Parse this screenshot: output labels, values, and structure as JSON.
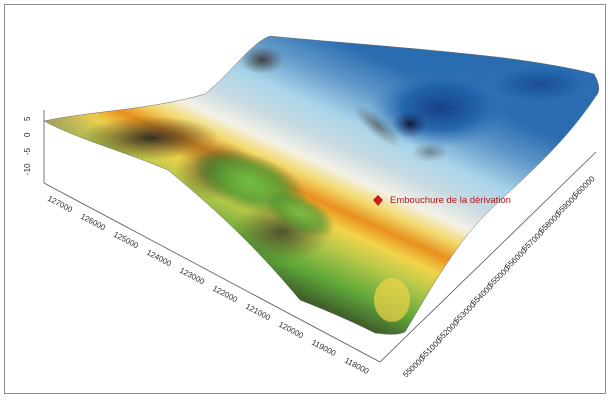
{
  "figure": {
    "annotation": {
      "label": "Embouchure de la dérivation",
      "marker_color": "#c81e1e"
    },
    "left_axis_ticks": [
      "127000",
      "126000",
      "125000",
      "124000",
      "123000",
      "122000",
      "121000",
      "120000",
      "119000",
      "118000"
    ],
    "right_axis_ticks": [
      "550000",
      "551000",
      "552000",
      "553000",
      "554000",
      "555000",
      "556000",
      "557000",
      "558000",
      "559000",
      "560000"
    ],
    "vertical_axis_ticks": [
      "5",
      "0",
      "-5",
      "-10"
    ],
    "surface_colors": {
      "green_low": "#5fa83a",
      "yellow": "#f2d34a",
      "orange": "#e8901e",
      "white_crest": "#f4f1e6",
      "light_blue": "#a9d4ea",
      "deep_blue": "#1d5fa8",
      "dark_brown": "#3a2f22"
    }
  }
}
